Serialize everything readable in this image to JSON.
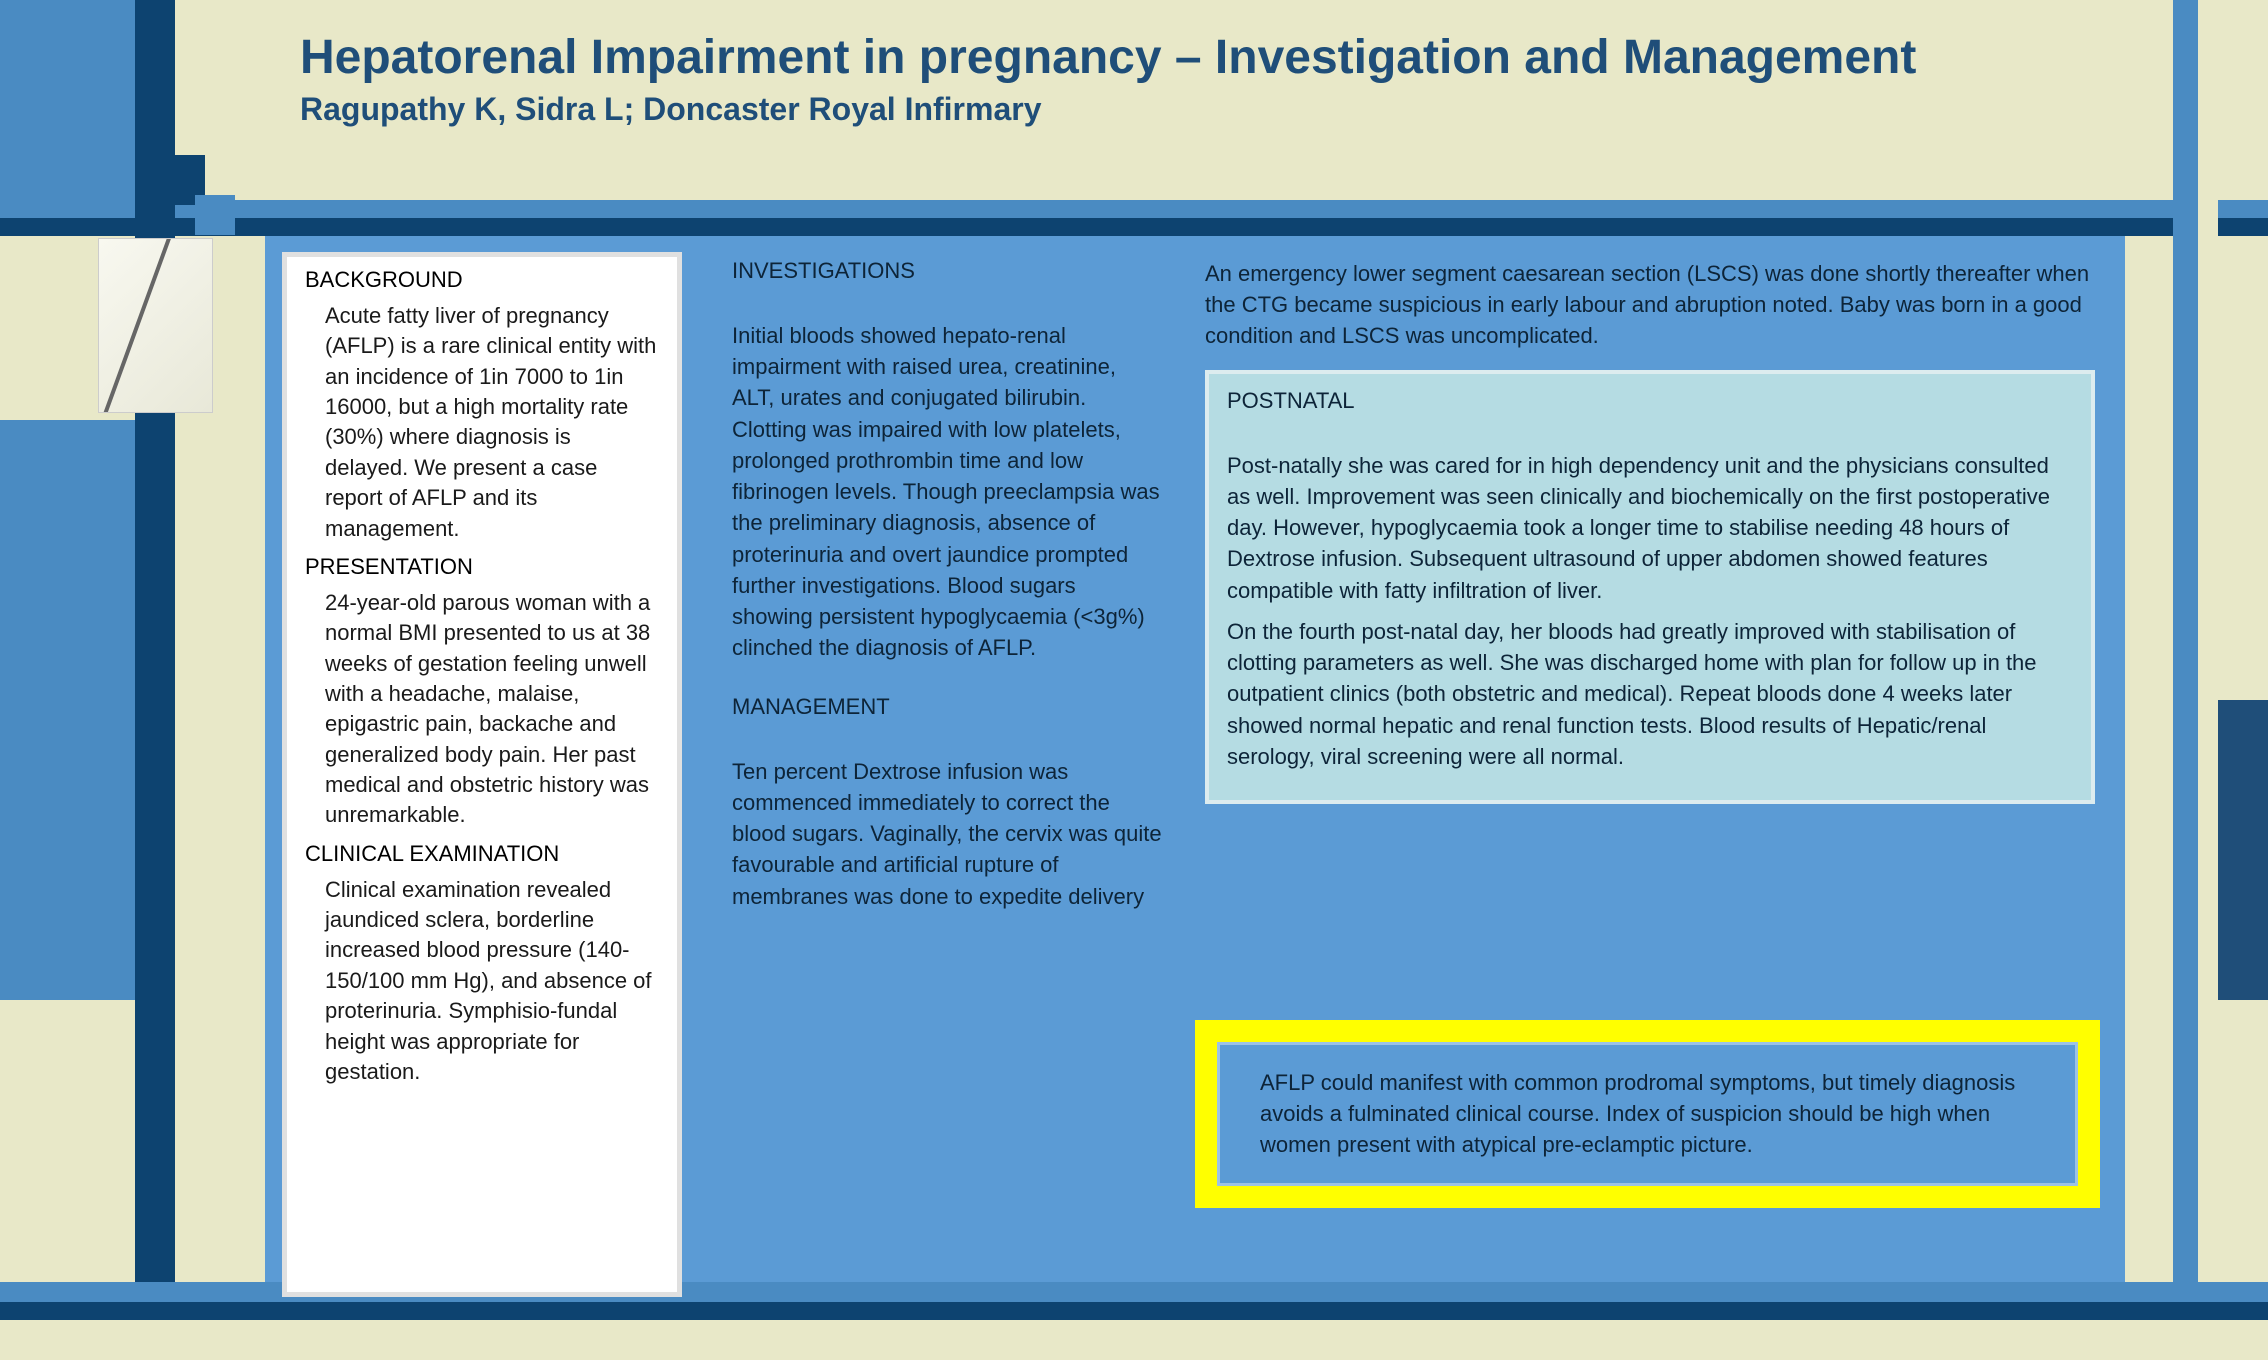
{
  "colors": {
    "cream_bg": "#e8e8c8",
    "blue_mid": "#5b9bd5",
    "blue_light": "#4a8bc2",
    "blue_dark": "#0d4370",
    "title_color": "#1f4e79",
    "postnatal_bg": "#b5dce3",
    "yellow": "#ffff00",
    "white": "#ffffff",
    "text_dark": "#0d2438"
  },
  "header": {
    "title": "Hepatorenal Impairment in pregnancy – Investigation and Management",
    "authors": "Ragupathy K, Sidra L; Doncaster Royal Infirmary"
  },
  "col1": {
    "background_heading": "BACKGROUND",
    "background_text": "Acute fatty liver of pregnancy (AFLP) is a rare clinical entity with an incidence of 1in 7000 to 1in 16000, but a high mortality rate (30%) where diagnosis is delayed. We present a case report of AFLP and its management.",
    "presentation_heading": "PRESENTATION",
    "presentation_text": "24-year-old parous woman with a normal BMI presented to us at 38 weeks of gestation feeling unwell with a headache, malaise, epigastric pain, backache and generalized body pain. Her past medical and obstetric history was unremarkable.",
    "clinical_heading": "CLINICAL EXAMINATION",
    "clinical_text": "Clinical examination revealed jaundiced sclera, borderline increased blood pressure (140-150/100 mm Hg), and absence of proterinuria. Symphisio-fundal height was appropriate for gestation."
  },
  "col2": {
    "investigations_heading": "INVESTIGATIONS",
    "investigations_text": "Initial bloods showed hepato-renal impairment with raised urea, creatinine, ALT, urates and conjugated bilirubin. Clotting was impaired with low platelets, prolonged prothrombin time and low fibrinogen levels. Though preeclampsia was the preliminary diagnosis, absence of proterinuria and overt jaundice prompted further investigations. Blood sugars showing persistent hypoglycaemia (<3g%) clinched the diagnosis of AFLP.",
    "management_heading": "MANAGEMENT",
    "management_text": "Ten percent Dextrose infusion was commenced immediately to correct the blood sugars. Vaginally, the cervix was quite favourable and artificial rupture of membranes was done to expedite delivery"
  },
  "col3": {
    "intro_text": "An emergency lower segment caesarean section (LSCS) was done shortly thereafter when the CTG became suspicious in early labour and abruption noted. Baby was born in a good condition and LSCS was uncomplicated.",
    "postnatal_heading": "POSTNATAL",
    "postnatal_p1": "Post-natally she was cared for in high dependency unit and the physicians consulted as well. Improvement was seen clinically and biochemically on the first postoperative day. However, hypoglycaemia took a longer time to stabilise needing 48 hours of Dextrose infusion. Subsequent ultrasound of upper abdomen showed features compatible with fatty infiltration of liver.",
    "postnatal_p2": "On the fourth post-natal day, her bloods had greatly improved with stabilisation of clotting parameters as well. She was discharged home with plan for follow up in the outpatient clinics (both obstetric and medical). Repeat bloods done 4 weeks later showed normal hepatic and renal function tests. Blood results of Hepatic/renal serology, viral screening were all normal.",
    "conclusion_text": "AFLP could manifest with common prodromal symptoms, but timely diagnosis avoids a fulminated clinical course. Index of suspicion should be high when women present with atypical pre-eclamptic picture."
  }
}
